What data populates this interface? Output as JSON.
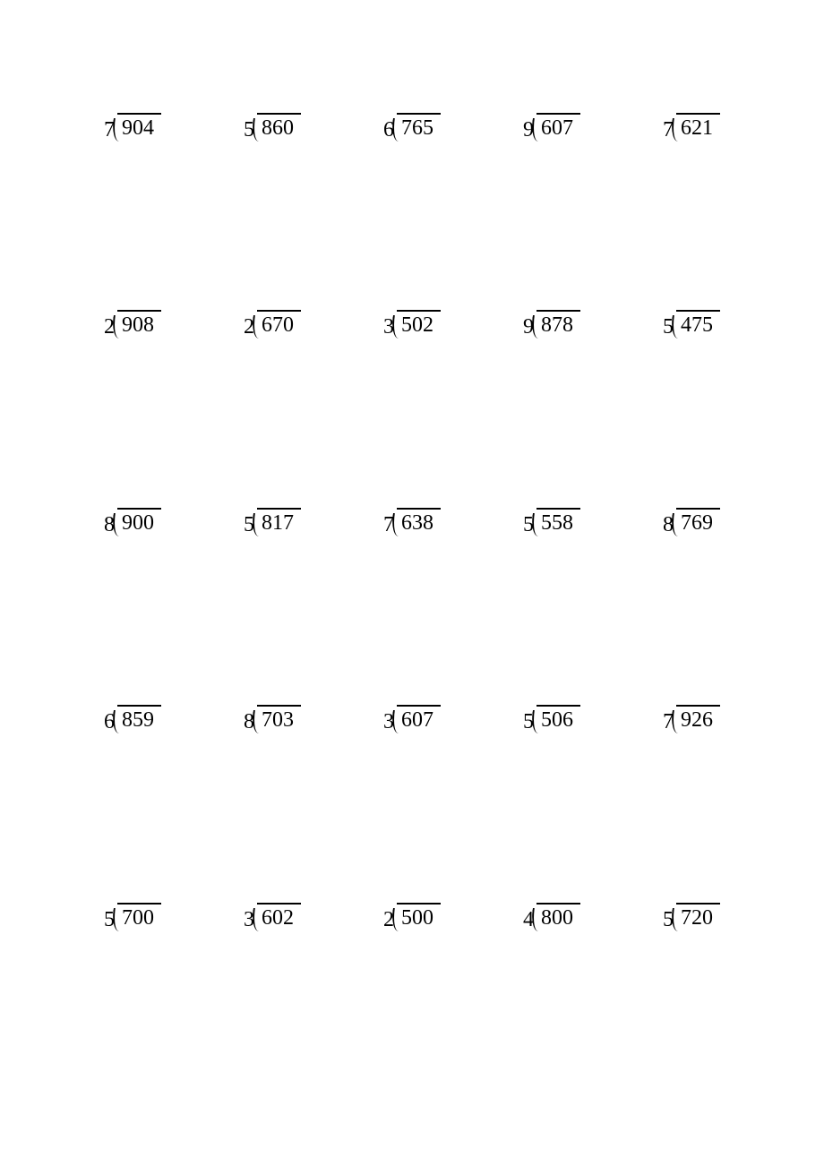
{
  "worksheet": {
    "type": "long-division-problems",
    "rows": 5,
    "cols": 5,
    "font_color": "#000000",
    "background_color": "#ffffff",
    "border_color": "#000000",
    "font_size": 24,
    "problems": [
      [
        {
          "divisor": "7",
          "dividend": "904"
        },
        {
          "divisor": "5",
          "dividend": "860"
        },
        {
          "divisor": "6",
          "dividend": "765"
        },
        {
          "divisor": "9",
          "dividend": "607"
        },
        {
          "divisor": "7",
          "dividend": "621"
        }
      ],
      [
        {
          "divisor": "2",
          "dividend": "908"
        },
        {
          "divisor": "2",
          "dividend": "670"
        },
        {
          "divisor": "3",
          "dividend": "502"
        },
        {
          "divisor": "9",
          "dividend": "878"
        },
        {
          "divisor": "5",
          "dividend": "475"
        }
      ],
      [
        {
          "divisor": "8",
          "dividend": "900"
        },
        {
          "divisor": "5",
          "dividend": "817"
        },
        {
          "divisor": "7",
          "dividend": "638"
        },
        {
          "divisor": "5",
          "dividend": "558"
        },
        {
          "divisor": "8",
          "dividend": "769"
        }
      ],
      [
        {
          "divisor": "6",
          "dividend": "859"
        },
        {
          "divisor": "8",
          "dividend": "703"
        },
        {
          "divisor": "3",
          "dividend": "607"
        },
        {
          "divisor": "5",
          "dividend": "506"
        },
        {
          "divisor": "7",
          "dividend": "926"
        }
      ],
      [
        {
          "divisor": "5",
          "dividend": "700"
        },
        {
          "divisor": "3",
          "dividend": "602"
        },
        {
          "divisor": "2",
          "dividend": "500"
        },
        {
          "divisor": "4",
          "dividend": "800"
        },
        {
          "divisor": "5",
          "dividend": "720"
        }
      ]
    ]
  }
}
